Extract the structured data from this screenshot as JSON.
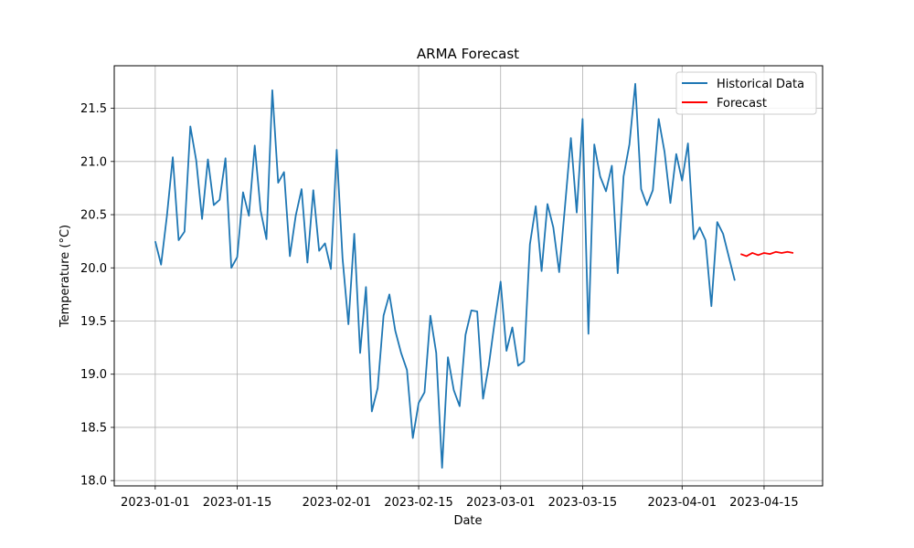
{
  "chart_data": {
    "type": "line",
    "title": "ARMA Forecast",
    "xlabel": "Date",
    "ylabel": "Temperature (°C)",
    "xlim": [
      "2022-12-25",
      "2023-04-25"
    ],
    "ylim": [
      17.95,
      21.9
    ],
    "x_ticks": [
      "2023-01-01",
      "2023-01-15",
      "2023-02-01",
      "2023-02-15",
      "2023-03-01",
      "2023-03-15",
      "2023-04-01",
      "2023-04-15"
    ],
    "y_ticks": [
      18.0,
      18.5,
      19.0,
      19.5,
      20.0,
      20.5,
      21.0,
      21.5
    ],
    "grid": true,
    "legend_position": "upper-right",
    "series": [
      {
        "name": "Historical Data",
        "color": "#1f77b4",
        "start_date": "2023-01-01",
        "values": [
          20.25,
          20.03,
          20.49,
          21.04,
          20.26,
          20.34,
          21.33,
          21.01,
          20.46,
          21.02,
          20.59,
          20.64,
          21.03,
          20.0,
          20.1,
          20.71,
          20.49,
          21.15,
          20.54,
          20.27,
          21.67,
          20.8,
          20.9,
          20.11,
          20.49,
          20.74,
          20.05,
          20.73,
          20.16,
          20.23,
          19.99,
          21.11,
          20.09,
          19.47,
          20.32,
          19.2,
          19.82,
          18.65,
          18.87,
          19.55,
          19.75,
          19.41,
          19.2,
          19.04,
          18.4,
          18.73,
          18.83,
          19.55,
          19.2,
          18.12,
          19.16,
          18.85,
          18.7,
          19.37,
          19.6,
          19.59,
          18.77,
          19.09,
          19.5,
          19.87,
          19.22,
          19.44,
          19.08,
          19.12,
          20.22,
          20.58,
          19.97,
          20.6,
          20.38,
          19.96,
          20.58,
          21.22,
          20.52,
          21.4,
          19.38,
          21.16,
          20.86,
          20.72,
          20.96,
          19.95,
          20.86,
          21.16,
          21.73,
          20.74,
          20.59,
          20.73,
          21.4,
          21.09,
          20.61,
          21.07,
          20.82,
          21.17,
          20.27,
          20.38,
          20.26,
          19.64,
          20.43,
          20.32,
          20.1,
          19.88
        ]
      },
      {
        "name": "Forecast",
        "color": "#ff0000",
        "start_date": "2023-04-11",
        "values": [
          20.13,
          20.11,
          20.14,
          20.12,
          20.14,
          20.13,
          20.15,
          20.14,
          20.15,
          20.14
        ]
      }
    ]
  }
}
